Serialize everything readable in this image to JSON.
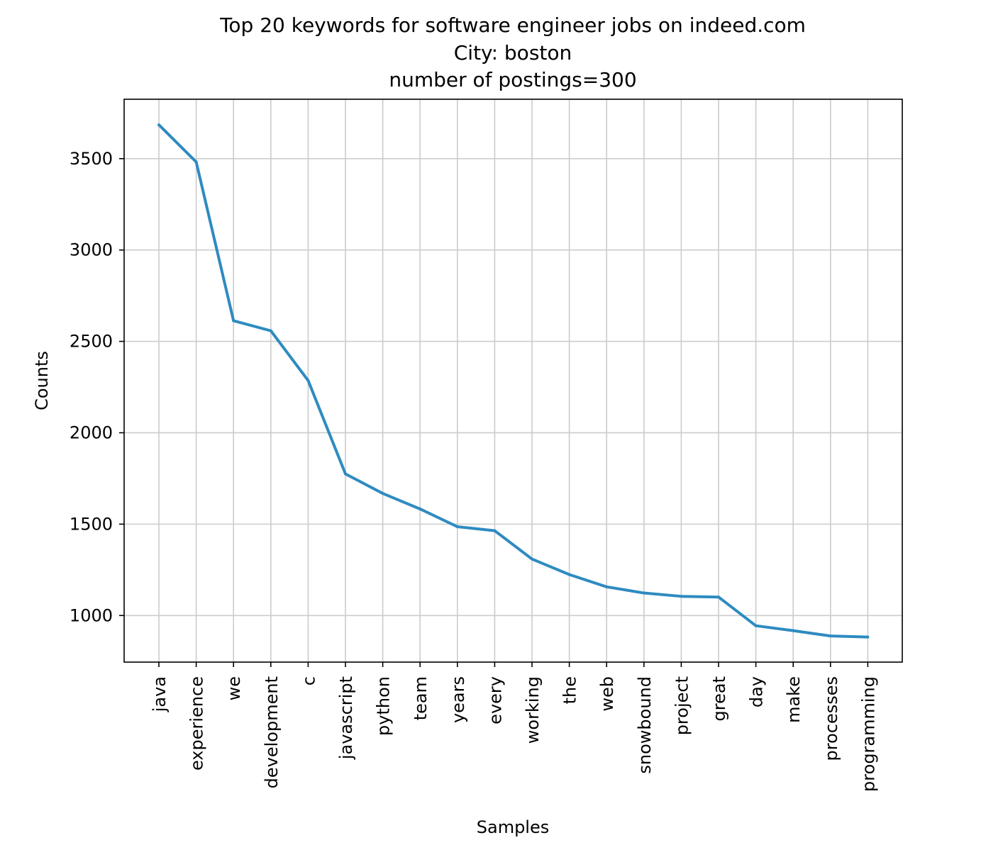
{
  "chart_data": {
    "type": "line",
    "title_lines": [
      "Top 20 keywords for software engineer jobs on indeed.com",
      "City: boston",
      "number of postings=300"
    ],
    "xlabel": "Samples",
    "ylabel": "Counts",
    "categories": [
      "java",
      "experience",
      "we",
      "development",
      "c",
      "javascript",
      "python",
      "team",
      "years",
      "every",
      "working",
      "the",
      "web",
      "snowbound",
      "project",
      "great",
      "day",
      "make",
      "processes",
      "programming"
    ],
    "values": [
      3685,
      3482,
      2613,
      2558,
      2286,
      1775,
      1668,
      1583,
      1486,
      1464,
      1309,
      1224,
      1157,
      1123,
      1105,
      1101,
      944,
      917,
      888,
      882
    ],
    "yticks": [
      1000,
      1500,
      2000,
      2500,
      3000,
      3500
    ],
    "ylim": [
      745,
      3825
    ],
    "grid": true,
    "line_color": "#2e8bc0",
    "grid_color": "#cccccc"
  }
}
